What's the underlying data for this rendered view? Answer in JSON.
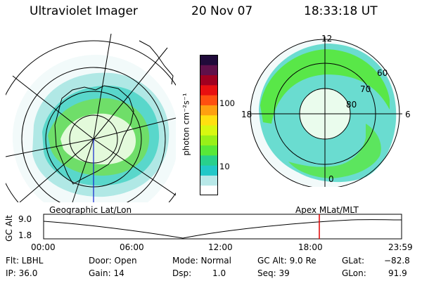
{
  "header": {
    "instrument": "Ultraviolet Imager",
    "date": "20 Nov 07",
    "time": "18:33:18 UT"
  },
  "colorbar": {
    "unit_label": "photon cm⁻²s⁻¹",
    "ticks": [
      "100",
      "10"
    ],
    "colors": [
      "#ffffff",
      "#b8e8e8",
      "#22c8c8",
      "#28d08c",
      "#58e838",
      "#98f018",
      "#d8f810",
      "#ffe010",
      "#ffa010",
      "#ff5010",
      "#e81010",
      "#a00020",
      "#60104a",
      "#200a3a"
    ]
  },
  "polar_plot": {
    "mlt_labels": [
      "12",
      "18",
      "6",
      "0"
    ],
    "mlat_labels": [
      "60",
      "70",
      "80"
    ]
  },
  "timeline": {
    "left_label": "Geographic Lat/Lon",
    "right_label": "Apex MLat/MLT",
    "axis_title": "GC Alt",
    "y_ticks": [
      "9.0",
      "1.8"
    ],
    "time_ticks": [
      "00:00",
      "06:00",
      "12:00",
      "18:00",
      "23:59"
    ],
    "marker_color": "#e00000"
  },
  "status": {
    "filter": "Flt: LBHL",
    "ip": "IP: 36.0",
    "door": "Door: Open",
    "gain": "Gain: 14",
    "mode": "Mode: Normal",
    "dsp_label": "Dsp:",
    "dsp_value": "1.0",
    "gc_alt": "GC Alt: 9.0 Re",
    "seq": "Seq: 39",
    "glat_label": "GLat:",
    "glat_value": "−82.8",
    "glon_label": "GLon:",
    "glon_value": "91.9"
  }
}
